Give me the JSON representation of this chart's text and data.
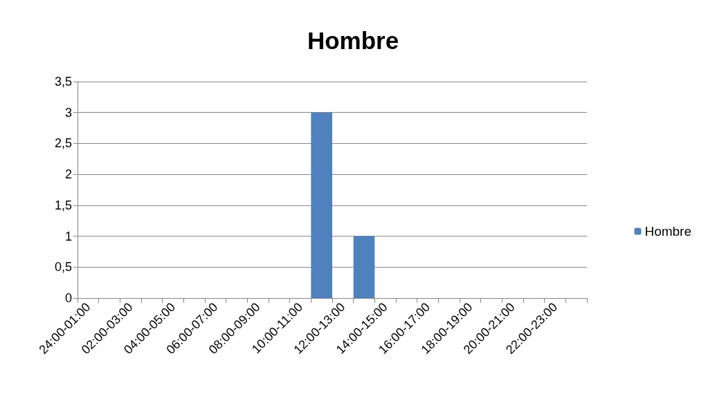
{
  "chart_data": {
    "type": "bar",
    "title": "Hombre",
    "categories": [
      "24:00-01:00",
      null,
      "02:00-03:00",
      null,
      "04:00-05:00",
      null,
      "06:00-07:00",
      null,
      "08:00-09:00",
      null,
      "10:00-11:00",
      null,
      "12:00-13:00",
      null,
      "14:00-15:00",
      null,
      "16:00-17:00",
      null,
      "18:00-19:00",
      null,
      "20:00-21:00",
      null,
      "22:00-23:00",
      null
    ],
    "series": [
      {
        "name": "Hombre",
        "color": "#4f81bd",
        "values": [
          0,
          0,
          0,
          0,
          0,
          0,
          0,
          0,
          0,
          0,
          0,
          3,
          0,
          1,
          0,
          0,
          0,
          0,
          0,
          0,
          0,
          0,
          0,
          0
        ]
      }
    ],
    "ylim": [
      0,
      3.5
    ],
    "yticks": [
      0,
      {
        "value": 0.5,
        "label": "0,5"
      },
      1,
      {
        "value": 1.5,
        "label": "1,5"
      },
      2,
      {
        "value": 2.5,
        "label": "2,5"
      },
      3,
      {
        "value": 3.5,
        "label": "3,5"
      }
    ],
    "grid": "y",
    "legend": "right"
  }
}
